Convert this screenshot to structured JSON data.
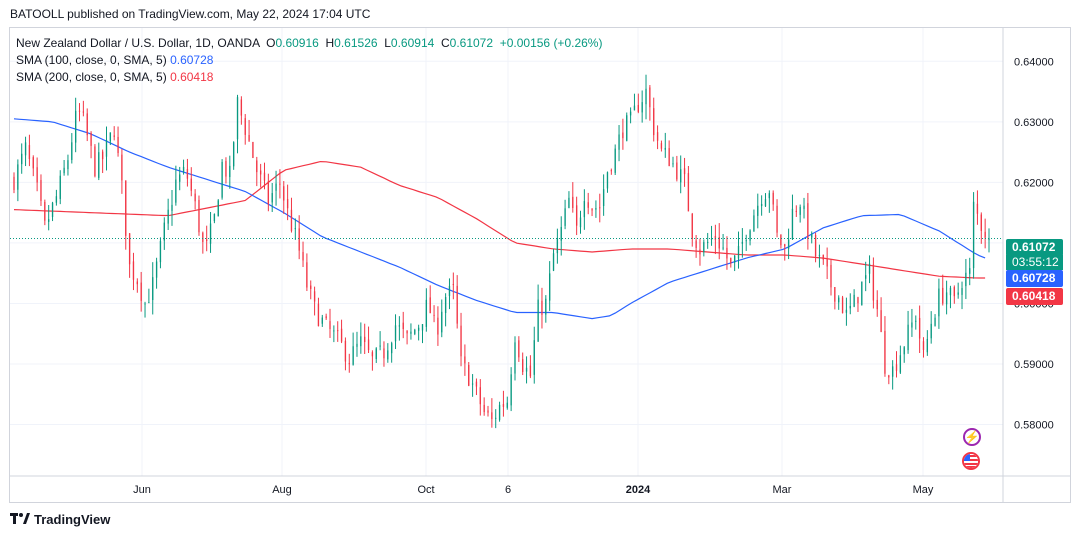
{
  "header": {
    "published": "BATOOLL published on TradingView.com, May 22, 2024 17:04 UTC"
  },
  "legend": {
    "symbol": "New Zealand Dollar / U.S. Dollar, 1D, OANDA",
    "o_label": "O",
    "o": "0.60916",
    "h_label": "H",
    "h": "0.61526",
    "l_label": "L",
    "l": "0.60914",
    "c_label": "C",
    "c": "0.61072",
    "change": "+0.00156 (+0.26%)",
    "sma100_label": "SMA (100, close, 0, SMA, 5)",
    "sma100_value": "0.60728",
    "sma200_label": "SMA (200, close, 0, SMA, 5)",
    "sma200_value": "0.60418"
  },
  "tags": {
    "price": "0.61072",
    "countdown": "03:55:12",
    "sma100": "0.60728",
    "sma200": "0.60418"
  },
  "footer": {
    "brand": "TradingView"
  },
  "colors": {
    "up": "#089981",
    "down": "#f23645",
    "sma100": "#2962ff",
    "sma200": "#f23645",
    "grid": "#f0f3fa"
  },
  "chart_data": {
    "type": "candlestick",
    "y_ticks": [
      "0.64000",
      "0.63000",
      "0.62000",
      "0.61000",
      "0.60000",
      "0.59000",
      "0.58000"
    ],
    "y_tick_values": [
      0.64,
      0.63,
      0.62,
      0.61,
      0.6,
      0.59,
      0.58
    ],
    "x_ticks": [
      "Jun",
      "Aug",
      "Oct",
      "6",
      "2024",
      "Mar",
      "May"
    ],
    "ylim": [
      0.5715,
      0.6455
    ],
    "current_price": 0.61072,
    "close_path": [
      [
        0,
        0.6205
      ],
      [
        6,
        0.6255
      ],
      [
        12,
        0.6185
      ],
      [
        16,
        0.6125
      ],
      [
        22,
        0.6175
      ],
      [
        28,
        0.624
      ],
      [
        33,
        0.632
      ],
      [
        36,
        0.63
      ],
      [
        42,
        0.6225
      ],
      [
        46,
        0.624
      ],
      [
        52,
        0.629
      ],
      [
        56,
        0.619
      ],
      [
        60,
        0.606
      ],
      [
        64,
        0.604
      ],
      [
        68,
        0.6
      ],
      [
        72,
        0.603
      ],
      [
        78,
        0.612
      ],
      [
        84,
        0.62
      ],
      [
        89,
        0.622
      ],
      [
        94,
        0.616
      ],
      [
        99,
        0.608
      ],
      [
        104,
        0.614
      ],
      [
        108,
        0.623
      ],
      [
        112,
        0.621
      ],
      [
        116,
        0.633
      ],
      [
        120,
        0.629
      ],
      [
        126,
        0.622
      ],
      [
        132,
        0.617
      ],
      [
        138,
        0.62
      ],
      [
        142,
        0.615
      ],
      [
        147,
        0.61
      ],
      [
        152,
        0.603
      ],
      [
        156,
        0.599
      ],
      [
        162,
        0.596
      ],
      [
        168,
        0.594
      ],
      [
        174,
        0.591
      ],
      [
        180,
        0.5935
      ],
      [
        186,
        0.5905
      ],
      [
        192,
        0.592
      ],
      [
        198,
        0.5965
      ],
      [
        204,
        0.594
      ],
      [
        210,
        0.5965
      ],
      [
        215,
        0.6
      ],
      [
        219,
        0.595
      ],
      [
        223,
        0.601
      ],
      [
        228,
        0.602
      ],
      [
        232,
        0.59
      ],
      [
        236,
        0.588
      ],
      [
        240,
        0.585
      ],
      [
        244,
        0.582
      ],
      [
        248,
        0.5805
      ],
      [
        252,
        0.583
      ],
      [
        256,
        0.584
      ],
      [
        260,
        0.595
      ],
      [
        264,
        0.59
      ],
      [
        268,
        0.588
      ],
      [
        272,
        0.599
      ],
      [
        276,
        0.6
      ],
      [
        280,
        0.608
      ],
      [
        284,
        0.612
      ],
      [
        288,
        0.617
      ],
      [
        292,
        0.612
      ],
      [
        296,
        0.6185
      ],
      [
        300,
        0.616
      ],
      [
        304,
        0.616
      ],
      [
        308,
        0.622
      ],
      [
        312,
        0.625
      ],
      [
        316,
        0.629
      ],
      [
        320,
        0.63
      ],
      [
        324,
        0.633
      ],
      [
        328,
        0.635
      ],
      [
        332,
        0.629
      ],
      [
        336,
        0.625
      ],
      [
        340,
        0.624
      ],
      [
        344,
        0.622
      ],
      [
        348,
        0.62
      ],
      [
        352,
        0.612
      ],
      [
        356,
        0.609
      ],
      [
        360,
        0.61
      ],
      [
        364,
        0.611
      ],
      [
        368,
        0.609
      ],
      [
        372,
        0.606
      ],
      [
        376,
        0.608
      ],
      [
        380,
        0.612
      ],
      [
        384,
        0.615
      ],
      [
        388,
        0.618
      ],
      [
        392,
        0.619
      ],
      [
        396,
        0.611
      ],
      [
        400,
        0.609
      ],
      [
        404,
        0.615
      ],
      [
        408,
        0.617
      ],
      [
        412,
        0.612
      ],
      [
        416,
        0.608
      ],
      [
        420,
        0.606
      ],
      [
        424,
        0.603
      ],
      [
        428,
        0.601
      ],
      [
        432,
        0.598
      ],
      [
        436,
        0.6
      ],
      [
        440,
        0.603
      ],
      [
        444,
        0.605
      ],
      [
        448,
        0.599
      ],
      [
        452,
        0.59
      ],
      [
        456,
        0.589
      ],
      [
        460,
        0.592
      ],
      [
        464,
        0.595
      ],
      [
        468,
        0.598
      ],
      [
        472,
        0.591
      ],
      [
        476,
        0.597
      ],
      [
        480,
        0.601
      ],
      [
        484,
        0.602
      ],
      [
        488,
        0.6
      ],
      [
        492,
        0.604
      ],
      [
        496,
        0.605
      ],
      [
        498,
        0.616
      ],
      [
        502,
        0.613
      ],
      [
        506,
        0.6107
      ]
    ],
    "sma100_path": [
      [
        0,
        0.6305
      ],
      [
        20,
        0.63
      ],
      [
        40,
        0.628
      ],
      [
        60,
        0.625
      ],
      [
        80,
        0.6225
      ],
      [
        100,
        0.6205
      ],
      [
        120,
        0.6185
      ],
      [
        140,
        0.615
      ],
      [
        160,
        0.611
      ],
      [
        180,
        0.6085
      ],
      [
        200,
        0.606
      ],
      [
        220,
        0.603
      ],
      [
        240,
        0.6005
      ],
      [
        260,
        0.5985
      ],
      [
        280,
        0.5985
      ],
      [
        300,
        0.5975
      ],
      [
        310,
        0.598
      ],
      [
        320,
        0.6
      ],
      [
        340,
        0.6035
      ],
      [
        360,
        0.6055
      ],
      [
        380,
        0.6075
      ],
      [
        400,
        0.609
      ],
      [
        420,
        0.6125
      ],
      [
        440,
        0.6145
      ],
      [
        460,
        0.6147
      ],
      [
        480,
        0.612
      ],
      [
        500,
        0.608
      ],
      [
        506,
        0.6073
      ]
    ],
    "sma200_path": [
      [
        0,
        0.6155
      ],
      [
        40,
        0.615
      ],
      [
        80,
        0.6145
      ],
      [
        120,
        0.617
      ],
      [
        140,
        0.622
      ],
      [
        160,
        0.6235
      ],
      [
        180,
        0.6225
      ],
      [
        200,
        0.6195
      ],
      [
        220,
        0.6175
      ],
      [
        240,
        0.614
      ],
      [
        260,
        0.61
      ],
      [
        280,
        0.609
      ],
      [
        300,
        0.6085
      ],
      [
        320,
        0.609
      ],
      [
        340,
        0.609
      ],
      [
        360,
        0.6085
      ],
      [
        380,
        0.608
      ],
      [
        400,
        0.608
      ],
      [
        420,
        0.6075
      ],
      [
        440,
        0.6065
      ],
      [
        460,
        0.6055
      ],
      [
        480,
        0.6045
      ],
      [
        500,
        0.6042
      ],
      [
        506,
        0.6042
      ]
    ]
  }
}
